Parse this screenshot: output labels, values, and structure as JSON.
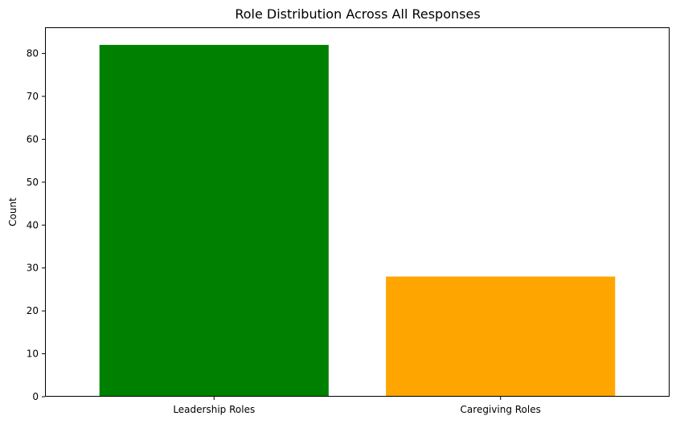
{
  "chart_data": {
    "type": "bar",
    "title": "Role Distribution Across All Responses",
    "xlabel": "",
    "ylabel": "Count",
    "categories": [
      "Leadership Roles",
      "Caregiving Roles"
    ],
    "values": [
      82,
      28
    ],
    "colors": [
      "#008000",
      "#FFA500"
    ],
    "ylim": [
      0,
      86.1
    ],
    "yticks": [
      0,
      10,
      20,
      30,
      40,
      50,
      60,
      70,
      80
    ],
    "grid": false,
    "legend": "none"
  }
}
